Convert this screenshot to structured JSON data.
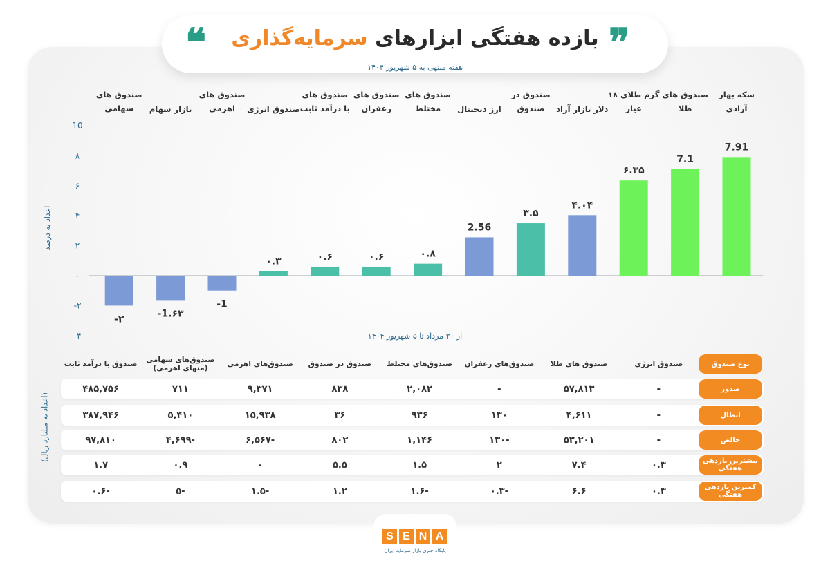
{
  "header": {
    "title_part1": "بازده هفتگی ابزارهای",
    "title_part2": "سرمایه‌گذاری",
    "quote_open": "❞",
    "quote_close": "❝",
    "subtitle": "هفته منتهی به ۵ شهریور ۱۴۰۴"
  },
  "chart_data": {
    "type": "bar",
    "ylabel": "اعداد به درصد",
    "xlabel": "از ۳۰ مرداد تا ۵ شهریور ۱۴۰۴",
    "ylim": [
      -4,
      10
    ],
    "y_ticks": [
      -4,
      -2,
      0,
      2,
      4,
      6,
      8,
      10
    ],
    "y_tick_labels": [
      "-۴",
      "-۲",
      "۰",
      "۲",
      "۴",
      "۶",
      "۸",
      "10"
    ],
    "grid": false,
    "categories": [
      [
        "سکه بهار",
        "آزادی"
      ],
      [
        "صندوق های",
        "طلا"
      ],
      [
        "گرم طلای ۱۸",
        "عیار"
      ],
      [
        "دلار بازار آزاد"
      ],
      [
        "صندوق در",
        "صندوق"
      ],
      [
        "ارز دیجیتال"
      ],
      [
        "صندوق های",
        "مختلط"
      ],
      [
        "صندوق های",
        "زعفران"
      ],
      [
        "صندوق های",
        "با درآمد ثابت"
      ],
      [
        "صندوق انرژی"
      ],
      [
        "صندوق های",
        "اهرمی"
      ],
      [
        "بازار سهام"
      ],
      [
        "صندوق های",
        "سهامی"
      ]
    ],
    "values": [
      7.91,
      7.1,
      6.35,
      4.04,
      3.5,
      2.56,
      0.8,
      0.6,
      0.6,
      0.3,
      -1,
      -1.63,
      -2
    ],
    "value_labels": [
      "7.91",
      "7.1",
      "۶.۳۵",
      "۴.۰۴",
      "۳.۵",
      "2.56",
      "۰.۸",
      "۰.۶",
      "۰.۶",
      "۰.۳",
      "-1",
      "-1.۶۳",
      "-۲"
    ],
    "bar_colors": [
      "#6df25a",
      "#6df25a",
      "#6df25a",
      "#7b9ad6",
      "#4cbfa8",
      "#7b9ad6",
      "#4cbfa8",
      "#4cbfa8",
      "#4cbfa8",
      "#4cbfa8",
      "#7b9ad6",
      "#7b9ad6",
      "#7b9ad6"
    ]
  },
  "table": {
    "side_label": "(اعداد به میلیارد ریال)",
    "header_label": "نوع صندوق",
    "columns": [
      "صندوق انرژی",
      "صندوق های طلا",
      "صندوق‌های زعفران",
      "صندوق‌های مختلط",
      "صندوق در صندوق",
      "صندوق‌های اهرمی",
      "صندوق‌های سهامی (منهای اهرمی)",
      "صندوق با درآمد ثابت"
    ],
    "rows": [
      {
        "label": "صدور",
        "cells": [
          "-",
          "۵۷,۸۱۳",
          "-",
          "۲,۰۸۲",
          "۸۳۸",
          "۹,۳۷۱",
          "۷۱۱",
          "۴۸۵,۷۵۶"
        ]
      },
      {
        "label": "ابطال",
        "cells": [
          "-",
          "۴,۶۱۱",
          "۱۳۰",
          "۹۳۶",
          "۳۶",
          "۱۵,۹۳۸",
          "۵,۴۱۰",
          "۳۸۷,۹۴۶"
        ]
      },
      {
        "label": "خالص",
        "cells": [
          "-",
          "۵۳,۲۰۱",
          "-۱۳۰",
          "۱,۱۴۶",
          "۸۰۲",
          "-۶,۵۶۷",
          "-۴,۶۹۹",
          "۹۷,۸۱۰"
        ]
      },
      {
        "label": "بیشترین بازدهی هفتگی",
        "cells": [
          "۰.۳",
          "۷.۴",
          "۲",
          "۱.۵",
          "۵.۵",
          "۰",
          "۰.۹",
          "۱.۷"
        ]
      },
      {
        "label": "کمترین بازدهی هفتگی",
        "cells": [
          "۰.۳",
          "۶.۶",
          "-۰.۳",
          "-۱.۶",
          "۱.۲",
          "-۱.۵",
          "-۵",
          "-۰.۶"
        ]
      }
    ]
  },
  "footer": {
    "logo_letters": [
      "S",
      "E",
      "N",
      "A"
    ],
    "tagline": "پایگاه خبری بازار سرمایه ایران"
  }
}
